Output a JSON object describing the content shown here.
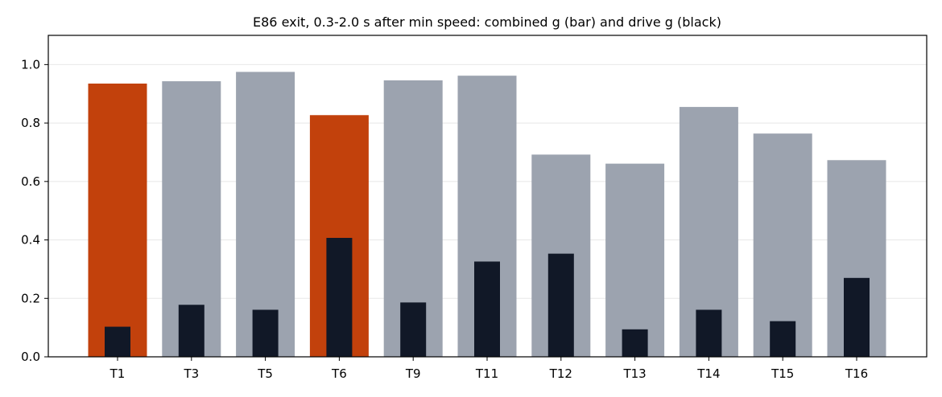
{
  "chart_data": {
    "type": "bar",
    "title": "E86 exit, 0.3-2.0 s after min speed: combined g (bar) and drive g (black)",
    "xlabel": "",
    "ylabel": "",
    "categories": [
      "T1",
      "T3",
      "T5",
      "T6",
      "T9",
      "T11",
      "T12",
      "T13",
      "T14",
      "T15",
      "T16"
    ],
    "series": [
      {
        "name": "combined g (bar)",
        "values": [
          0.935,
          0.943,
          0.975,
          0.827,
          0.946,
          0.962,
          0.692,
          0.661,
          0.855,
          0.764,
          0.673
        ],
        "color": "#9ca3af",
        "highlight_color": "#c2410c",
        "highlighted": [
          "T1",
          "T6"
        ]
      },
      {
        "name": "drive g (black)",
        "values": [
          0.103,
          0.178,
          0.161,
          0.407,
          0.186,
          0.326,
          0.353,
          0.094,
          0.161,
          0.122,
          0.27
        ],
        "color": "#111827"
      }
    ],
    "ylim": [
      0,
      1.1
    ],
    "yticks": [
      "0.0",
      "0.2",
      "0.4",
      "0.6",
      "0.8",
      "1.0"
    ],
    "grid": true
  }
}
